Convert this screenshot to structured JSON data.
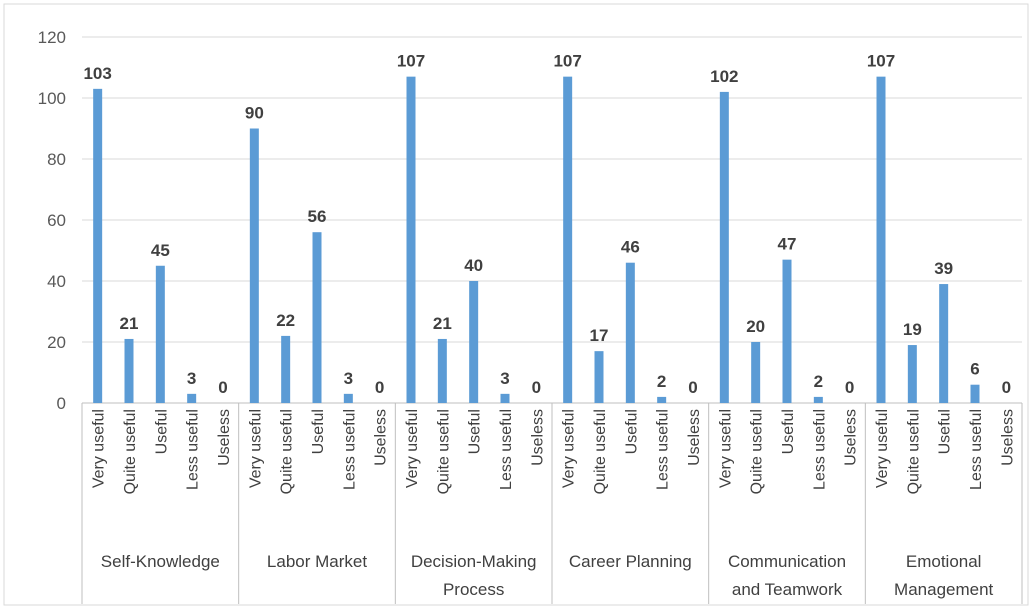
{
  "chart_data": {
    "type": "bar",
    "title": "",
    "xlabel": "",
    "ylabel": "",
    "ylim": [
      0,
      120
    ],
    "yticks": [
      0,
      20,
      40,
      60,
      80,
      100,
      120
    ],
    "grid": true,
    "legend": "none",
    "bar_color": "#5b9bd5",
    "grid_color": "#d9d9d9",
    "groups": [
      {
        "name": "Self-Knowledge",
        "label_lines": [
          "Self-Knowledge"
        ],
        "categories": [
          "Very useful",
          "Quite useful",
          "Useful",
          "Less useful",
          "Useless"
        ],
        "values": [
          103,
          21,
          45,
          3,
          0
        ]
      },
      {
        "name": "Labor Market",
        "label_lines": [
          "Labor Market"
        ],
        "categories": [
          "Very useful",
          "Quite useful",
          "Useful",
          "Less useful",
          "Useless"
        ],
        "values": [
          90,
          22,
          56,
          3,
          0
        ]
      },
      {
        "name": "Decision-Making Process",
        "label_lines": [
          "Decision-Making",
          "Process"
        ],
        "categories": [
          "Very useful",
          "Quite useful",
          "Useful",
          "Less useful",
          "Useless"
        ],
        "values": [
          107,
          21,
          40,
          3,
          0
        ]
      },
      {
        "name": "Career Planning",
        "label_lines": [
          "Career Planning"
        ],
        "categories": [
          "Very useful",
          "Quite useful",
          "Useful",
          "Less useful",
          "Useless"
        ],
        "values": [
          107,
          17,
          46,
          2,
          0
        ]
      },
      {
        "name": "Communication and Teamwork",
        "label_lines": [
          "Communication",
          "and Teamwork"
        ],
        "categories": [
          "Very useful",
          "Quite useful",
          "Useful",
          "Less useful",
          "Useless"
        ],
        "values": [
          102,
          20,
          47,
          2,
          0
        ]
      },
      {
        "name": "Emotional Management",
        "label_lines": [
          "Emotional",
          "Management"
        ],
        "categories": [
          "Very useful",
          "Quite useful",
          "Useful",
          "Less useful",
          "Useless"
        ],
        "values": [
          107,
          19,
          39,
          6,
          0
        ]
      }
    ]
  }
}
